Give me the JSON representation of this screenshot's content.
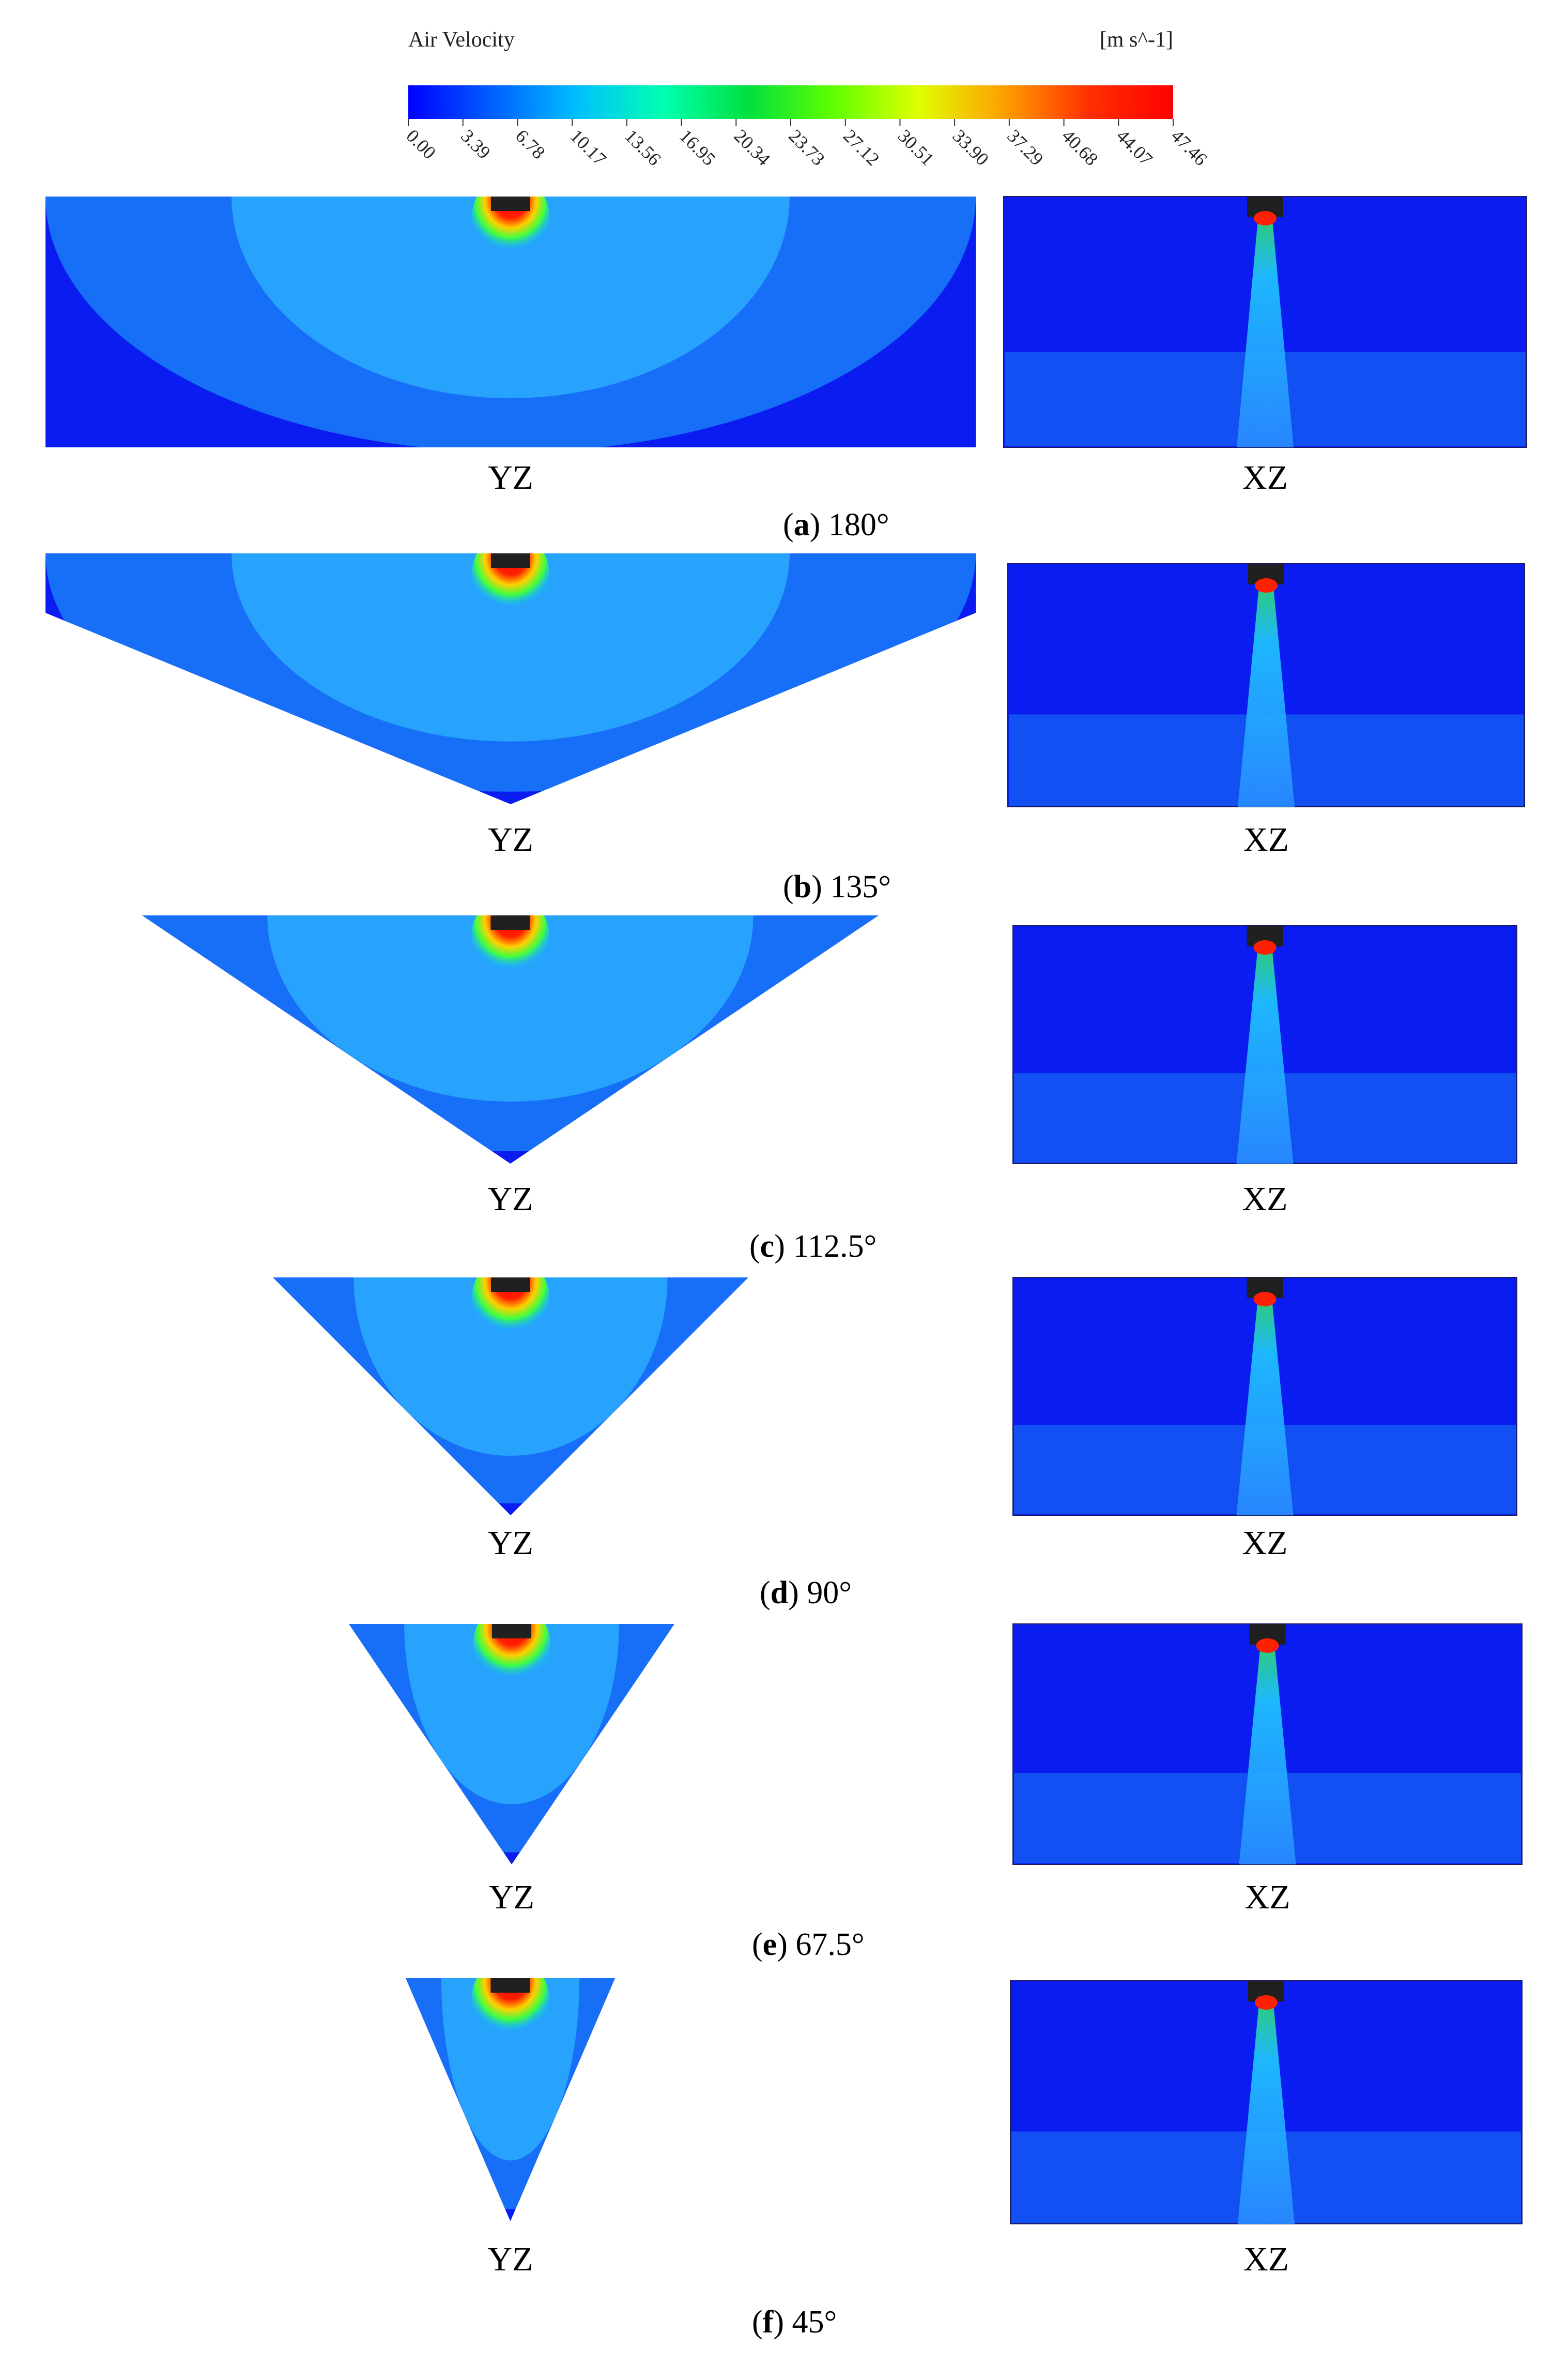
{
  "colorbar": {
    "title": "Air Velocity",
    "unit": "[m s^-1]",
    "ticks": [
      "0.00",
      "3.39",
      "6.78",
      "10.17",
      "13.56",
      "16.95",
      "20.34",
      "23.73",
      "27.12",
      "30.51",
      "33.90",
      "37.29",
      "40.68",
      "44.07",
      "47.46"
    ],
    "colors": [
      "#0000ff",
      "#0060ff",
      "#00c0ff",
      "#00ffb0",
      "#00e040",
      "#60ff00",
      "#e0ff00",
      "#ffa000",
      "#ff3000",
      "#ff0000"
    ]
  },
  "domain_colors": {
    "background": "#0a1cf0",
    "mid": "#1a7cf8",
    "plume": "#2db4ff",
    "core": "#30e070",
    "hot": "#ff2000",
    "nozzle": "#202020"
  },
  "panels": [
    {
      "letter": "a",
      "angle": "180°",
      "yz_label": "YZ",
      "xz_label": "XZ"
    },
    {
      "letter": "b",
      "angle": "135°",
      "yz_label": "YZ",
      "xz_label": "XZ"
    },
    {
      "letter": "c",
      "angle": "112.5°",
      "yz_label": "YZ",
      "xz_label": "XZ"
    },
    {
      "letter": "d",
      "angle": "90°",
      "yz_label": "YZ",
      "xz_label": "XZ"
    },
    {
      "letter": "e",
      "angle": "67.5°",
      "yz_label": "YZ",
      "xz_label": "XZ"
    },
    {
      "letter": "f",
      "angle": "45°",
      "yz_label": "YZ",
      "xz_label": "XZ"
    }
  ]
}
